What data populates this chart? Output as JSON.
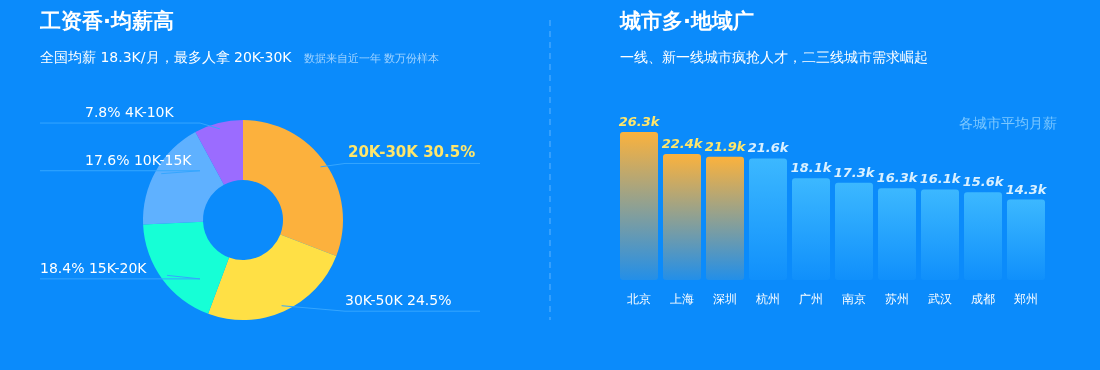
{
  "chart_data": [
    {
      "type": "donut",
      "title": "工资香·均薪高",
      "subtitle": "全国均薪 18.3K/月，最多人拿 20K-30K",
      "annotations": [
        "数据来自近一年 数万份样本"
      ],
      "categories": [
        "20K-30K",
        "30K-50K",
        "15K-20K",
        "10K-15K",
        "4K-10K"
      ],
      "values": [
        30.5,
        24.5,
        18.4,
        17.6,
        7.8
      ],
      "value_labels": [
        "30.5%",
        "24.5%",
        "18.4%",
        "17.6%",
        "7.8%"
      ],
      "colors": [
        "#fcb13d",
        "#ffe045",
        "#16ffd6",
        "#5fb1ff",
        "#9b6cff"
      ]
    },
    {
      "type": "bar",
      "title": "城市多·地域广",
      "subtitle": "一线、新一线城市疯抢人才，二三线城市需求崛起",
      "annotations": [
        "各城市平均月薪"
      ],
      "categories": [
        "北京",
        "上海",
        "深圳",
        "杭州",
        "广州",
        "南京",
        "苏州",
        "武汉",
        "成都",
        "郑州"
      ],
      "values": [
        26.3,
        22.4,
        21.9,
        21.6,
        18.1,
        17.3,
        16.3,
        16.1,
        15.6,
        14.3
      ],
      "value_labels": [
        "26.3k",
        "22.4k",
        "21.9k",
        "21.6k",
        "18.1k",
        "17.3k",
        "16.3k",
        "16.1k",
        "15.6k",
        "14.3k"
      ],
      "colors": [
        "#fbb23d",
        "#fbb23d",
        "#fbb23d",
        "#3cb8ff",
        "#3cb8ff",
        "#3cb8ff",
        "#3cb8ff",
        "#3cb8ff",
        "#3cb8ff",
        "#3cb8ff"
      ]
    }
  ]
}
